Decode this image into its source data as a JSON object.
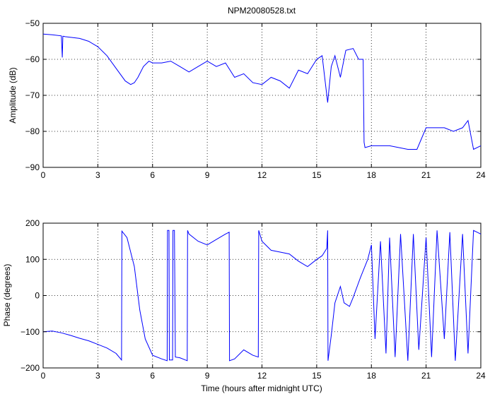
{
  "chart_data": [
    {
      "type": "line",
      "title": "NPM20080528.txt",
      "xlabel": "",
      "ylabel": "Amplitude (dB)",
      "xlim": [
        0,
        24
      ],
      "ylim": [
        -90,
        -50
      ],
      "xticks": [
        "0",
        "3",
        "6",
        "9",
        "12",
        "15",
        "18",
        "21",
        "24"
      ],
      "yticks": [
        "−50",
        "−60",
        "−70",
        "−80",
        "−90"
      ],
      "grid": true,
      "series": [
        {
          "color": "#0000ff",
          "x": [
            0,
            0.5,
            1.0,
            1.05,
            1.08,
            1.12,
            1.2,
            2.0,
            2.5,
            3.0,
            3.5,
            4.0,
            4.5,
            4.8,
            5.0,
            5.2,
            5.5,
            5.8,
            6.0,
            6.5,
            7.0,
            7.5,
            8.0,
            8.5,
            9.0,
            9.5,
            10.0,
            10.5,
            11.0,
            11.5,
            12.0,
            12.5,
            13.0,
            13.5,
            14.0,
            14.5,
            15.0,
            15.3,
            15.6,
            15.8,
            16.0,
            16.3,
            16.6,
            17.0,
            17.3,
            17.55,
            17.6,
            17.65,
            18.0,
            19.0,
            20.0,
            20.5,
            21.0,
            21.3,
            22.0,
            22.5,
            23.0,
            23.3,
            23.6,
            24.0
          ],
          "y": [
            -53,
            -53.2,
            -53.5,
            -59.5,
            -53.6,
            -53.6,
            -53.7,
            -54.2,
            -55,
            -56.5,
            -59,
            -62.5,
            -66,
            -67,
            -66.5,
            -65,
            -62,
            -60.5,
            -61,
            -61,
            -60.5,
            -62,
            -63.5,
            -62,
            -60.5,
            -62,
            -61,
            -65,
            -64,
            -66.5,
            -67,
            -65,
            -66,
            -68,
            -63,
            -64,
            -60,
            -59,
            -72,
            -62,
            -59,
            -65,
            -57.5,
            -57,
            -60,
            -60,
            -83,
            -84.5,
            -84,
            -84,
            -85,
            -85,
            -79,
            -79,
            -79,
            -80,
            -79,
            -77,
            -85,
            -84
          ]
        }
      ]
    },
    {
      "type": "line",
      "title": "",
      "xlabel": "Time (hours after midnight UTC)",
      "ylabel": "Phase (degrees)",
      "xlim": [
        0,
        24
      ],
      "ylim": [
        -200,
        200
      ],
      "xticks": [
        "0",
        "3",
        "6",
        "9",
        "12",
        "15",
        "18",
        "21",
        "24"
      ],
      "yticks": [
        "200",
        "100",
        "0",
        "−100",
        "−200"
      ],
      "grid": true,
      "series": [
        {
          "color": "#0000ff",
          "x": [
            0,
            0.5,
            1.0,
            1.5,
            2.0,
            2.5,
            3.0,
            3.5,
            4.0,
            4.3,
            4.32,
            4.6,
            5.0,
            5.3,
            5.6,
            6.0,
            6.5,
            6.8,
            6.82,
            6.9,
            6.92,
            7.1,
            7.12,
            7.2,
            7.25,
            7.5,
            7.9,
            7.92,
            8.0,
            8.5,
            9.0,
            9.5,
            10.0,
            10.2,
            10.22,
            10.5,
            11.0,
            11.5,
            11.8,
            11.82,
            12.0,
            12.5,
            13.0,
            13.5,
            14.0,
            14.5,
            15.0,
            15.3,
            15.55,
            15.6,
            15.62,
            15.8,
            16.0,
            16.3,
            16.5,
            16.8,
            17.0,
            17.4,
            17.8,
            18.0,
            18.2,
            18.5,
            18.8,
            19.0,
            19.3,
            19.6,
            20.0,
            20.3,
            20.6,
            21.0,
            21.3,
            21.6,
            22.0,
            22.3,
            22.6,
            23.0,
            23.3,
            23.6,
            24.0
          ],
          "y": [
            -100,
            -98,
            -103,
            -110,
            -118,
            -125,
            -135,
            -145,
            -160,
            -178,
            178,
            160,
            80,
            -40,
            -120,
            -165,
            -175,
            -180,
            180,
            180,
            -178,
            -178,
            180,
            180,
            -170,
            -172,
            -180,
            180,
            170,
            150,
            140,
            155,
            170,
            175,
            -180,
            -175,
            -150,
            -165,
            -170,
            180,
            150,
            125,
            120,
            115,
            95,
            80,
            100,
            110,
            130,
            180,
            -180,
            -110,
            -20,
            25,
            -20,
            -30,
            -5,
            50,
            100,
            140,
            -120,
            150,
            -160,
            160,
            -170,
            170,
            -180,
            170,
            -150,
            160,
            -170,
            180,
            -120,
            175,
            -180,
            170,
            -160,
            180,
            170
          ]
        }
      ]
    }
  ]
}
